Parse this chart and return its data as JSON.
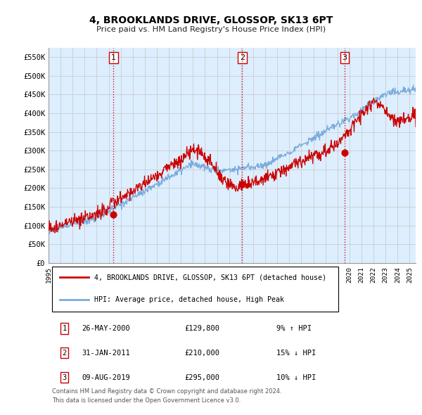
{
  "title": "4, BROOKLANDS DRIVE, GLOSSOP, SK13 6PT",
  "subtitle": "Price paid vs. HM Land Registry's House Price Index (HPI)",
  "ylabel_ticks": [
    0,
    50000,
    100000,
    150000,
    200000,
    250000,
    300000,
    350000,
    400000,
    450000,
    500000,
    550000
  ],
  "ylabel_labels": [
    "£0",
    "£50K",
    "£100K",
    "£150K",
    "£200K",
    "£250K",
    "£300K",
    "£350K",
    "£400K",
    "£450K",
    "£500K",
    "£550K"
  ],
  "ylim": [
    0,
    575000
  ],
  "xlim_start": 1995.0,
  "xlim_end": 2025.5,
  "red_color": "#cc0000",
  "blue_color": "#7aabdc",
  "bg_color": "#ddeeff",
  "vline_color": "#cc0000",
  "grid_color": "#cccccc",
  "sale1": {
    "year": 2000.4,
    "price": 129800,
    "label": "1"
  },
  "sale2": {
    "year": 2011.08,
    "price": 210000,
    "label": "2"
  },
  "sale3": {
    "year": 2019.6,
    "price": 295000,
    "label": "3"
  },
  "legend_line1": "4, BROOKLANDS DRIVE, GLOSSOP, SK13 6PT (detached house)",
  "legend_line2": "HPI: Average price, detached house, High Peak",
  "table_rows": [
    {
      "num": "1",
      "date": "26-MAY-2000",
      "price": "£129,800",
      "hpi": "9% ↑ HPI"
    },
    {
      "num": "2",
      "date": "31-JAN-2011",
      "price": "£210,000",
      "hpi": "15% ↓ HPI"
    },
    {
      "num": "3",
      "date": "09-AUG-2019",
      "price": "£295,000",
      "hpi": "10% ↓ HPI"
    }
  ],
  "footnote1": "Contains HM Land Registry data © Crown copyright and database right 2024.",
  "footnote2": "This data is licensed under the Open Government Licence v3.0."
}
